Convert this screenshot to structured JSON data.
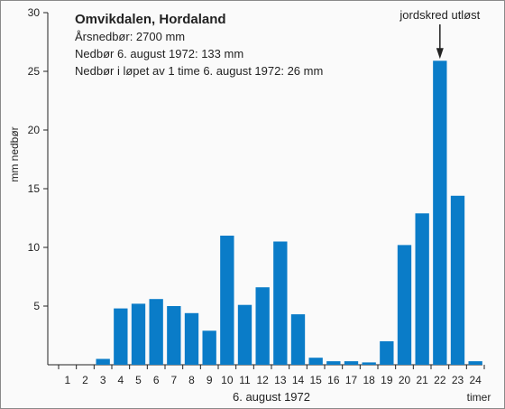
{
  "chart_data": {
    "type": "bar",
    "title": "Omvikdalen, Hordaland",
    "info_lines": [
      "Årsnedbør: 2700 mm",
      "Nedbør 6. august 1972:  133 mm",
      "Nedbør i løpet av 1 time 6. august 1972: 26 mm"
    ],
    "ylabel": "mm nedbør",
    "xlabel": "6. august 1972",
    "x_unit": "timer",
    "ylim": [
      0,
      30
    ],
    "yticks": [
      5,
      10,
      15,
      20,
      25,
      30
    ],
    "categories": [
      "1",
      "2",
      "3",
      "4",
      "5",
      "6",
      "7",
      "8",
      "9",
      "10",
      "11",
      "12",
      "13",
      "14",
      "15",
      "16",
      "17",
      "18",
      "19",
      "20",
      "21",
      "22",
      "23",
      "24"
    ],
    "values": [
      0,
      0,
      0.5,
      4.8,
      5.2,
      5.6,
      5.0,
      4.4,
      2.9,
      11.0,
      5.1,
      6.6,
      10.5,
      4.3,
      0.6,
      0.3,
      0.3,
      0.2,
      2.0,
      10.2,
      12.9,
      25.9,
      14.4,
      0.3
    ],
    "annotation": {
      "text": "jordskred utløst",
      "category": "22"
    },
    "bar_color": "#0a7cc8"
  }
}
